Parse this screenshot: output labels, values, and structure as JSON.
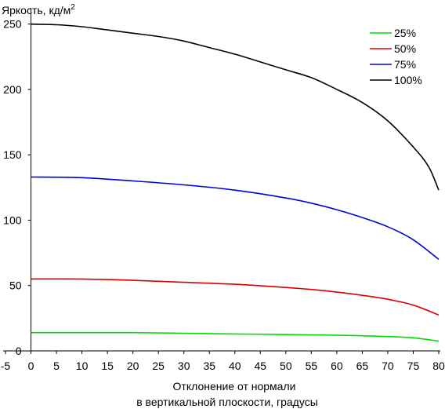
{
  "chart_data": {
    "type": "line",
    "ylabel": "Яркость, кд/м",
    "ylabel_superscript": "2",
    "xlabel_lines": [
      "Отклонение от нормали",
      "в вертикальной плоскости, градусы"
    ],
    "xlim": [
      -5,
      80
    ],
    "ylim": [
      0,
      260
    ],
    "xticks": [
      -5,
      0,
      5,
      10,
      15,
      20,
      25,
      30,
      35,
      40,
      45,
      50,
      55,
      60,
      65,
      70,
      75,
      80
    ],
    "yticks": [
      0,
      50,
      100,
      150,
      200,
      250
    ],
    "grid": false,
    "legend_position": "top-right",
    "series": [
      {
        "name": "25%",
        "color": "#00dd00",
        "x": [
          0,
          10,
          20,
          30,
          40,
          50,
          60,
          70,
          75,
          80
        ],
        "y": [
          14,
          14,
          14,
          13.5,
          13,
          12.5,
          12,
          11,
          10,
          7.5
        ]
      },
      {
        "name": "50%",
        "color": "#dd0000",
        "x": [
          0,
          10,
          20,
          30,
          40,
          50,
          55,
          60,
          65,
          70,
          75,
          80
        ],
        "y": [
          55,
          55,
          54,
          52.5,
          51,
          48.5,
          47,
          45,
          42.5,
          39.5,
          35,
          27.5
        ]
      },
      {
        "name": "75%",
        "color": "#0000dd",
        "x": [
          0,
          10,
          20,
          30,
          40,
          50,
          55,
          60,
          65,
          70,
          75,
          80
        ],
        "y": [
          133,
          132.5,
          130,
          127,
          123,
          117,
          113,
          108,
          102,
          95,
          85,
          70
        ]
      },
      {
        "name": "100%",
        "color": "#000000",
        "x": [
          0,
          5,
          10,
          15,
          20,
          25,
          30,
          35,
          40,
          45,
          50,
          55,
          60,
          65,
          70,
          75,
          78,
          80
        ],
        "y": [
          250,
          249.5,
          248,
          245.5,
          243,
          240.5,
          237,
          232,
          227,
          221,
          215,
          209,
          200,
          190,
          176,
          156,
          141,
          123
        ]
      }
    ]
  }
}
